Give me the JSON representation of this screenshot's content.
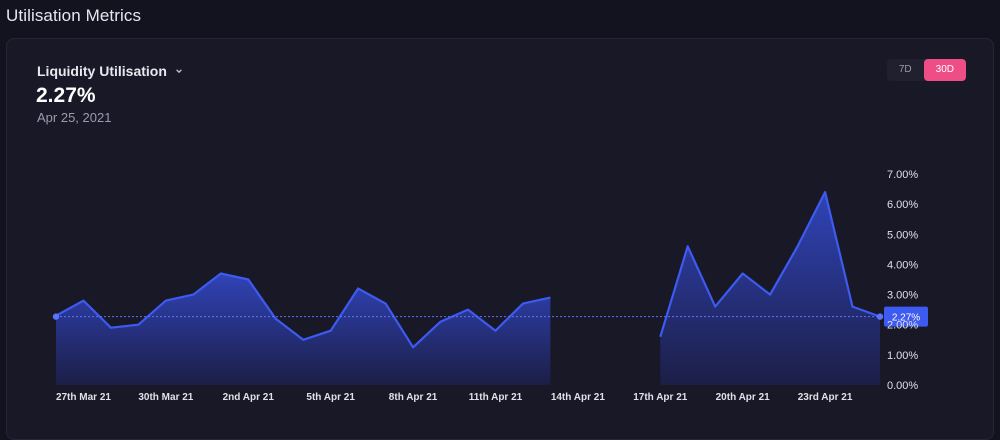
{
  "page": {
    "title": "Utilisation Metrics"
  },
  "metric": {
    "label": "Liquidity Utilisation",
    "value": "2.27%",
    "date": "Apr 25, 2021"
  },
  "range": {
    "options": [
      "7D",
      "30D"
    ],
    "selected": "30D"
  },
  "colors": {
    "line": "#3d5af1",
    "accent": "#ee4d86",
    "area_top": "#3348c8",
    "area_bottom": "#1c1f4a"
  },
  "chart_data": {
    "type": "area",
    "y_ticks": [
      "7.00%",
      "6.00%",
      "5.00%",
      "4.00%",
      "3.00%",
      "2.00%",
      "1.00%",
      "0.00%"
    ],
    "ylim": [
      0,
      7
    ],
    "x_tick_labels": [
      "27th Mar 21",
      "30th Mar 21",
      "2nd Apr 21",
      "5th Apr 21",
      "8th Apr 21",
      "11th Apr 21",
      "14th Apr 21",
      "17th Apr 21",
      "20th Apr 21",
      "23rd Apr 21"
    ],
    "x": [
      "26 Mar",
      "27 Mar",
      "28 Mar",
      "29 Mar",
      "30 Mar",
      "31 Mar",
      "1 Apr",
      "2 Apr",
      "3 Apr",
      "4 Apr",
      "5 Apr",
      "6 Apr",
      "7 Apr",
      "8 Apr",
      "9 Apr",
      "10 Apr",
      "11 Apr",
      "12 Apr",
      "13 Apr",
      "14 Apr",
      "15 Apr",
      "16 Apr",
      "17 Apr",
      "18 Apr",
      "19 Apr",
      "20 Apr",
      "21 Apr",
      "22 Apr",
      "23 Apr",
      "24 Apr",
      "25 Apr"
    ],
    "values": [
      2.3,
      2.8,
      1.9,
      2.0,
      2.8,
      3.0,
      3.7,
      3.5,
      2.2,
      1.5,
      1.8,
      3.2,
      2.7,
      1.25,
      2.1,
      2.5,
      1.8,
      2.7,
      2.9,
      null,
      null,
      null,
      1.6,
      4.6,
      2.6,
      3.7,
      3.0,
      4.6,
      6.4,
      2.6,
      2.27
    ],
    "reference_line": {
      "value": 2.27,
      "label": "2.27%"
    },
    "grid": false
  }
}
